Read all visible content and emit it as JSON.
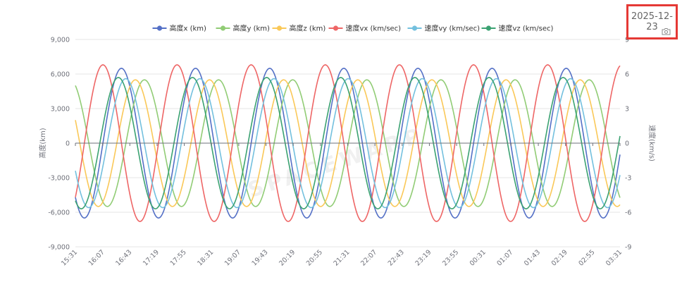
{
  "chart_data": {
    "type": "line",
    "categories": [
      "15:31",
      "16:07",
      "16:43",
      "17:19",
      "17:55",
      "18:31",
      "19:07",
      "19:43",
      "20:19",
      "20:55",
      "21:31",
      "22:07",
      "22:43",
      "23:19",
      "23:55",
      "00:31",
      "01:07",
      "01:43",
      "02:19",
      "02:55",
      "03:31"
    ],
    "y_left": {
      "label": "高度(km)",
      "range": [
        -9000,
        9000
      ],
      "ticks": [
        "9,000",
        "6,000",
        "3,000",
        "0",
        "-3,000",
        "-6,000",
        "-9,000"
      ]
    },
    "y_right": {
      "label": "速度(km/s)",
      "range": [
        -9,
        9
      ],
      "ticks": [
        "9",
        "6",
        "3",
        "0",
        "-3",
        "-6",
        "-9"
      ]
    },
    "grid": true,
    "legend_position": "top-center",
    "watermark": "SPACEWARP",
    "series": [
      {
        "name": "高度x (km)",
        "axis": "left",
        "color": "#5470c6",
        "amplitude": 6500,
        "period_min": 98,
        "start_value": -4700,
        "start_rising": false
      },
      {
        "name": "高度y (km)",
        "axis": "left",
        "color": "#91cc75",
        "amplitude": 5500,
        "period_min": 98,
        "start_value": 5000,
        "start_rising": false
      },
      {
        "name": "高度z (km)",
        "axis": "left",
        "color": "#fac858",
        "amplitude": 5500,
        "period_min": 98,
        "start_value": 2000,
        "start_rising": false
      },
      {
        "name": "速度vx (km/sec)",
        "axis": "right",
        "color": "#ee6666",
        "amplitude": 6.8,
        "period_min": 98,
        "start_value": -4.7,
        "start_rising": true
      },
      {
        "name": "速度vy (km/sec)",
        "axis": "right",
        "color": "#73c0de",
        "amplitude": 5.6,
        "period_min": 98,
        "start_value": -2.4,
        "start_rising": false
      },
      {
        "name": "速度vz (km/sec)",
        "axis": "right",
        "color": "#3ba272",
        "amplitude": 5.7,
        "period_min": 98,
        "start_value": -5.0,
        "start_rising": false
      }
    ],
    "x_span_minutes": 720
  },
  "toolbar": {
    "date": "2025-12-23",
    "save_icon": "camera-icon"
  }
}
